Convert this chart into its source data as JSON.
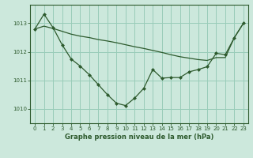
{
  "background_color": "#cce8dc",
  "grid_color": "#99ccb8",
  "line_color": "#2d5a2d",
  "title": "Graphe pression niveau de la mer (hPa)",
  "xlim": [
    -0.5,
    23.5
  ],
  "ylim": [
    1009.5,
    1013.65
  ],
  "yticks": [
    1010,
    1011,
    1012,
    1013
  ],
  "xticks": [
    0,
    1,
    2,
    3,
    4,
    5,
    6,
    7,
    8,
    9,
    10,
    11,
    12,
    13,
    14,
    15,
    16,
    17,
    18,
    19,
    20,
    21,
    22,
    23
  ],
  "series1_x": [
    0,
    1,
    2,
    3,
    4,
    5,
    6,
    7,
    8,
    9,
    10,
    11,
    12,
    13,
    14,
    15,
    16,
    17,
    18,
    19,
    20,
    21,
    22,
    23
  ],
  "series1_y": [
    1012.8,
    1013.32,
    1012.85,
    1012.25,
    1011.75,
    1011.5,
    1011.2,
    1010.85,
    1010.5,
    1010.2,
    1010.12,
    1010.38,
    1010.72,
    1011.38,
    1011.08,
    1011.1,
    1011.1,
    1011.3,
    1011.38,
    1011.48,
    1011.95,
    1011.9,
    1012.5,
    1013.0
  ],
  "series2_x": [
    0,
    1,
    2,
    3,
    4,
    5,
    6,
    7,
    8,
    9,
    10,
    11,
    12,
    13,
    14,
    15,
    16,
    17,
    18,
    19,
    20,
    21,
    22,
    23
  ],
  "series2_y": [
    1012.8,
    1012.9,
    1012.82,
    1012.72,
    1012.62,
    1012.55,
    1012.5,
    1012.43,
    1012.38,
    1012.32,
    1012.25,
    1012.18,
    1012.12,
    1012.05,
    1011.98,
    1011.9,
    1011.83,
    1011.78,
    1011.73,
    1011.7,
    1011.8,
    1011.8,
    1012.5,
    1013.0
  ],
  "title_fontsize": 6,
  "tick_fontsize": 5
}
